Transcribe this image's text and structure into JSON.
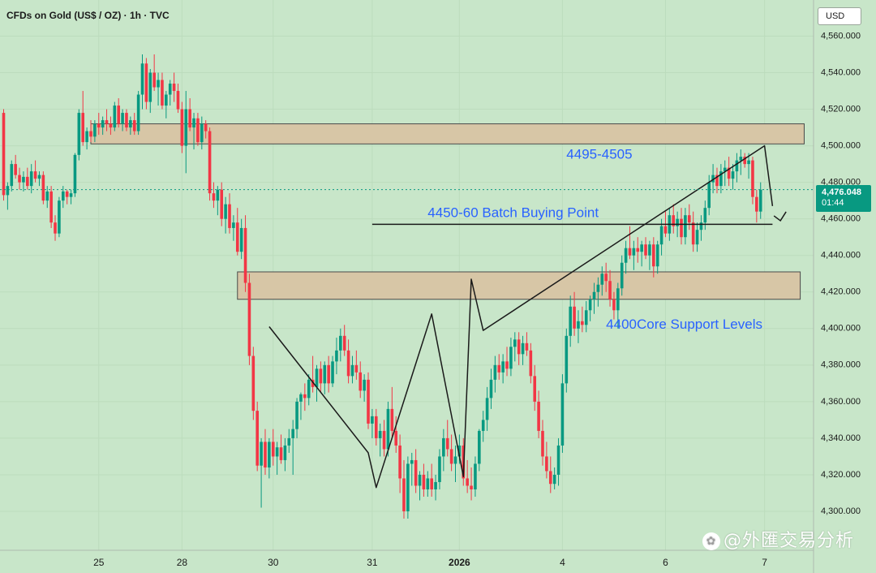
{
  "title": "CFDs on Gold (US$ / OZ) · 1h · TVC",
  "currency": "USD",
  "last_price": "4,476.048",
  "countdown": "01:44",
  "watermark": "@外匯交易分析",
  "colors": {
    "background": "#c8e6c9",
    "up": "#089981",
    "down": "#f23645",
    "zone": "#d7c6a6",
    "annotation_text": "#2962ff"
  },
  "chart_data": {
    "type": "candlestick",
    "ylim": [
      4290,
      4570
    ],
    "y_ticks": [
      4300,
      4320,
      4340,
      4360,
      4380,
      4400,
      4420,
      4440,
      4460,
      4480,
      4500,
      4520,
      4540,
      4560
    ],
    "y_tick_labels": [
      "4,300.000",
      "4,320.000",
      "4,340.000",
      "4,360.000",
      "4,380.000",
      "4,400.000",
      "4,420.000",
      "4,440.000",
      "4,460.000",
      "4,480.000",
      "4,500.000",
      "4,520.000",
      "4,540.000",
      "4,560.000"
    ],
    "x_ticks": [
      {
        "label": "25",
        "index": 24
      },
      {
        "label": "28",
        "index": 45
      },
      {
        "label": "30",
        "index": 68
      },
      {
        "label": "31",
        "index": 93
      },
      {
        "label": "2026",
        "index": 115,
        "bold": true
      },
      {
        "label": "4",
        "index": 141
      },
      {
        "label": "6",
        "index": 167
      },
      {
        "label": "7",
        "index": 192
      }
    ],
    "candles": [
      [
        4518,
        4520,
        4470,
        4473
      ],
      [
        4473,
        4480,
        4465,
        4478
      ],
      [
        4478,
        4492,
        4475,
        4490
      ],
      [
        4490,
        4495,
        4482,
        4484
      ],
      [
        4484,
        4488,
        4476,
        4480
      ],
      [
        4480,
        4486,
        4475,
        4483
      ],
      [
        4483,
        4488,
        4476,
        4478
      ],
      [
        4478,
        4490,
        4474,
        4486
      ],
      [
        4486,
        4492,
        4480,
        4482
      ],
      [
        4482,
        4486,
        4478,
        4484
      ],
      [
        4484,
        4486,
        4468,
        4470
      ],
      [
        4470,
        4478,
        4466,
        4475
      ],
      [
        4475,
        4478,
        4455,
        4458
      ],
      [
        4458,
        4462,
        4448,
        4452
      ],
      [
        4452,
        4472,
        4450,
        4470
      ],
      [
        4470,
        4478,
        4466,
        4475
      ],
      [
        4475,
        4476,
        4468,
        4472
      ],
      [
        4472,
        4476,
        4468,
        4474
      ],
      [
        4474,
        4496,
        4472,
        4495
      ],
      [
        4495,
        4520,
        4492,
        4518
      ],
      [
        4518,
        4530,
        4500,
        4502
      ],
      [
        4502,
        4510,
        4498,
        4508
      ],
      [
        4508,
        4514,
        4502,
        4505
      ],
      [
        4505,
        4514,
        4502,
        4512
      ],
      [
        4512,
        4518,
        4506,
        4510
      ],
      [
        4510,
        4516,
        4506,
        4514
      ],
      [
        4514,
        4520,
        4508,
        4512
      ],
      [
        4512,
        4516,
        4506,
        4510
      ],
      [
        4510,
        4524,
        4508,
        4522
      ],
      [
        4522,
        4526,
        4510,
        4512
      ],
      [
        4512,
        4520,
        4508,
        4518
      ],
      [
        4518,
        4520,
        4508,
        4510
      ],
      [
        4510,
        4516,
        4506,
        4514
      ],
      [
        4514,
        4518,
        4506,
        4508
      ],
      [
        4508,
        4530,
        4506,
        4528
      ],
      [
        4528,
        4550,
        4520,
        4545
      ],
      [
        4545,
        4548,
        4520,
        4524
      ],
      [
        4524,
        4542,
        4518,
        4540
      ],
      [
        4540,
        4550,
        4530,
        4532
      ],
      [
        4532,
        4540,
        4522,
        4536
      ],
      [
        4536,
        4540,
        4520,
        4522
      ],
      [
        4522,
        4530,
        4515,
        4528
      ],
      [
        4528,
        4536,
        4522,
        4534
      ],
      [
        4534,
        4540,
        4524,
        4530
      ],
      [
        4530,
        4534,
        4518,
        4520
      ],
      [
        4520,
        4524,
        4496,
        4500
      ],
      [
        4500,
        4530,
        4485,
        4520
      ],
      [
        4520,
        4526,
        4508,
        4510
      ],
      [
        4510,
        4518,
        4498,
        4515
      ],
      [
        4515,
        4518,
        4500,
        4502
      ],
      [
        4502,
        4516,
        4498,
        4512
      ],
      [
        4512,
        4514,
        4504,
        4508
      ],
      [
        4508,
        4510,
        4470,
        4474
      ],
      [
        4474,
        4480,
        4466,
        4470
      ],
      [
        4470,
        4478,
        4462,
        4476
      ],
      [
        4476,
        4480,
        4456,
        4460
      ],
      [
        4460,
        4472,
        4452,
        4468
      ],
      [
        4468,
        4474,
        4452,
        4455
      ],
      [
        4455,
        4462,
        4448,
        4458
      ],
      [
        4458,
        4466,
        4440,
        4442
      ],
      [
        4442,
        4460,
        4438,
        4455
      ],
      [
        4455,
        4462,
        4420,
        4425
      ],
      [
        4425,
        4430,
        4380,
        4385
      ],
      [
        4385,
        4390,
        4350,
        4355
      ],
      [
        4355,
        4360,
        4322,
        4325
      ],
      [
        4325,
        4340,
        4302,
        4338
      ],
      [
        4338,
        4345,
        4320,
        4324
      ],
      [
        4324,
        4340,
        4318,
        4338
      ],
      [
        4338,
        4345,
        4325,
        4330
      ],
      [
        4330,
        4338,
        4320,
        4335
      ],
      [
        4335,
        4342,
        4326,
        4328
      ],
      [
        4328,
        4340,
        4322,
        4336
      ],
      [
        4336,
        4345,
        4332,
        4340
      ],
      [
        4340,
        4350,
        4320,
        4345
      ],
      [
        4345,
        4362,
        4340,
        4360
      ],
      [
        4360,
        4365,
        4350,
        4364
      ],
      [
        4364,
        4370,
        4355,
        4362
      ],
      [
        4362,
        4375,
        4358,
        4372
      ],
      [
        4372,
        4385,
        4365,
        4368
      ],
      [
        4368,
        4380,
        4360,
        4378
      ],
      [
        4378,
        4382,
        4365,
        4370
      ],
      [
        4370,
        4382,
        4364,
        4380
      ],
      [
        4380,
        4385,
        4365,
        4370
      ],
      [
        4370,
        4385,
        4368,
        4382
      ],
      [
        4382,
        4395,
        4375,
        4388
      ],
      [
        4388,
        4400,
        4382,
        4396
      ],
      [
        4396,
        4402,
        4385,
        4388
      ],
      [
        4388,
        4394,
        4370,
        4374
      ],
      [
        4374,
        4385,
        4370,
        4380
      ],
      [
        4380,
        4388,
        4372,
        4376
      ],
      [
        4376,
        4382,
        4362,
        4366
      ],
      [
        4366,
        4375,
        4360,
        4372
      ],
      [
        4372,
        4376,
        4345,
        4348
      ],
      [
        4348,
        4356,
        4340,
        4352
      ],
      [
        4352,
        4356,
        4336,
        4340
      ],
      [
        4340,
        4348,
        4330,
        4344
      ],
      [
        4344,
        4350,
        4330,
        4334
      ],
      [
        4334,
        4360,
        4330,
        4356
      ],
      [
        4356,
        4368,
        4340,
        4344
      ],
      [
        4344,
        4352,
        4332,
        4336
      ],
      [
        4336,
        4342,
        4310,
        4318
      ],
      [
        4318,
        4328,
        4296,
        4300
      ],
      [
        4300,
        4330,
        4296,
        4326
      ],
      [
        4326,
        4332,
        4314,
        4328
      ],
      [
        4328,
        4334,
        4310,
        4314
      ],
      [
        4314,
        4322,
        4306,
        4320
      ],
      [
        4320,
        4326,
        4308,
        4312
      ],
      [
        4312,
        4322,
        4308,
        4318
      ],
      [
        4318,
        4326,
        4308,
        4312
      ],
      [
        4312,
        4320,
        4306,
        4316
      ],
      [
        4316,
        4334,
        4312,
        4330
      ],
      [
        4330,
        4345,
        4322,
        4340
      ],
      [
        4340,
        4350,
        4330,
        4334
      ],
      [
        4334,
        4342,
        4322,
        4326
      ],
      [
        4326,
        4336,
        4316,
        4330
      ],
      [
        4330,
        4342,
        4326,
        4336
      ],
      [
        4336,
        4340,
        4314,
        4318
      ],
      [
        4318,
        4328,
        4310,
        4314
      ],
      [
        4314,
        4324,
        4306,
        4312
      ],
      [
        4312,
        4330,
        4308,
        4326
      ],
      [
        4326,
        4345,
        4322,
        4344
      ],
      [
        4344,
        4355,
        4338,
        4350
      ],
      [
        4350,
        4368,
        4344,
        4362
      ],
      [
        4362,
        4378,
        4356,
        4372
      ],
      [
        4372,
        4385,
        4365,
        4380
      ],
      [
        4380,
        4386,
        4372,
        4376
      ],
      [
        4376,
        4386,
        4370,
        4382
      ],
      [
        4382,
        4390,
        4374,
        4378
      ],
      [
        4378,
        4395,
        4374,
        4390
      ],
      [
        4390,
        4398,
        4382,
        4394
      ],
      [
        4394,
        4398,
        4380,
        4386
      ],
      [
        4386,
        4396,
        4380,
        4392
      ],
      [
        4392,
        4398,
        4385,
        4388
      ],
      [
        4388,
        4392,
        4370,
        4374
      ],
      [
        4374,
        4380,
        4355,
        4360
      ],
      [
        4360,
        4366,
        4340,
        4344
      ],
      [
        4344,
        4350,
        4325,
        4330
      ],
      [
        4330,
        4338,
        4318,
        4322
      ],
      [
        4322,
        4330,
        4310,
        4315
      ],
      [
        4315,
        4324,
        4312,
        4320
      ],
      [
        4320,
        4340,
        4314,
        4336
      ],
      [
        4336,
        4375,
        4332,
        4370
      ],
      [
        4370,
        4400,
        4365,
        4396
      ],
      [
        4396,
        4418,
        4390,
        4412
      ],
      [
        4412,
        4420,
        4396,
        4400
      ],
      [
        4400,
        4410,
        4392,
        4404
      ],
      [
        4404,
        4412,
        4398,
        4402
      ],
      [
        4402,
        4415,
        4398,
        4410
      ],
      [
        4410,
        4418,
        4404,
        4416
      ],
      [
        4416,
        4425,
        4408,
        4420
      ],
      [
        4420,
        4428,
        4412,
        4424
      ],
      [
        4424,
        4434,
        4418,
        4430
      ],
      [
        4430,
        4436,
        4420,
        4426
      ],
      [
        4426,
        4432,
        4412,
        4416
      ],
      [
        4416,
        4420,
        4405,
        4410
      ],
      [
        4410,
        4425,
        4400,
        4422
      ],
      [
        4422,
        4440,
        4418,
        4436
      ],
      [
        4436,
        4448,
        4430,
        4444
      ],
      [
        4444,
        4456,
        4438,
        4440
      ],
      [
        4440,
        4448,
        4432,
        4444
      ],
      [
        4444,
        4450,
        4436,
        4442
      ],
      [
        4442,
        4448,
        4434,
        4446
      ],
      [
        4446,
        4450,
        4438,
        4440
      ],
      [
        4440,
        4448,
        4432,
        4446
      ],
      [
        4446,
        4450,
        4428,
        4434
      ],
      [
        4434,
        4448,
        4430,
        4446
      ],
      [
        4446,
        4460,
        4440,
        4456
      ],
      [
        4456,
        4464,
        4450,
        4452
      ],
      [
        4452,
        4466,
        4448,
        4462
      ],
      [
        4462,
        4468,
        4452,
        4456
      ],
      [
        4456,
        4464,
        4450,
        4460
      ],
      [
        4460,
        4466,
        4446,
        4450
      ],
      [
        4450,
        4466,
        4446,
        4462
      ],
      [
        4462,
        4468,
        4454,
        4458
      ],
      [
        4458,
        4464,
        4442,
        4446
      ],
      [
        4446,
        4458,
        4442,
        4454
      ],
      [
        4454,
        4462,
        4448,
        4458
      ],
      [
        4458,
        4470,
        4454,
        4466
      ],
      [
        4466,
        4484,
        4462,
        4480
      ],
      [
        4480,
        4490,
        4474,
        4484
      ],
      [
        4484,
        4488,
        4474,
        4478
      ],
      [
        4478,
        4490,
        4474,
        4486
      ],
      [
        4486,
        4492,
        4478,
        4488
      ],
      [
        4488,
        4494,
        4478,
        4482
      ],
      [
        4482,
        4490,
        4476,
        4486
      ],
      [
        4486,
        4496,
        4480,
        4492
      ],
      [
        4492,
        4498,
        4484,
        4494
      ],
      [
        4494,
        4496,
        4488,
        4490
      ],
      [
        4490,
        4496,
        4482,
        4492
      ],
      [
        4492,
        4494,
        4468,
        4472
      ],
      [
        4472,
        4476,
        4458,
        4464
      ],
      [
        4464,
        4480,
        4460,
        4476
      ]
    ],
    "zones": [
      {
        "y1": 4501,
        "y2": 4512,
        "i1": 22,
        "i2": 202
      },
      {
        "y1": 4416,
        "y2": 4431,
        "i1": 59,
        "i2": 201
      }
    ],
    "lines": [
      {
        "points": [
          [
            67,
            4401
          ],
          [
            92,
            4332
          ],
          [
            94,
            4313
          ],
          [
            108,
            4408
          ],
          [
            116,
            4319
          ],
          [
            118,
            4427
          ],
          [
            121,
            4399
          ],
          [
            192,
            4500
          ],
          [
            194,
            4467
          ]
        ],
        "arrow_end": [
          196,
          4459
        ]
      },
      {
        "points": [
          [
            93,
            4457
          ],
          [
            194,
            4457
          ]
        ]
      }
    ],
    "annotations": [
      {
        "text": "4495-4505",
        "index": 142,
        "y": 4495
      },
      {
        "text": "4450-60 Batch Buying Point",
        "index": 107,
        "y": 4463
      },
      {
        "text": "4400Core Support Levels",
        "index": 152,
        "y": 4402
      }
    ]
  }
}
